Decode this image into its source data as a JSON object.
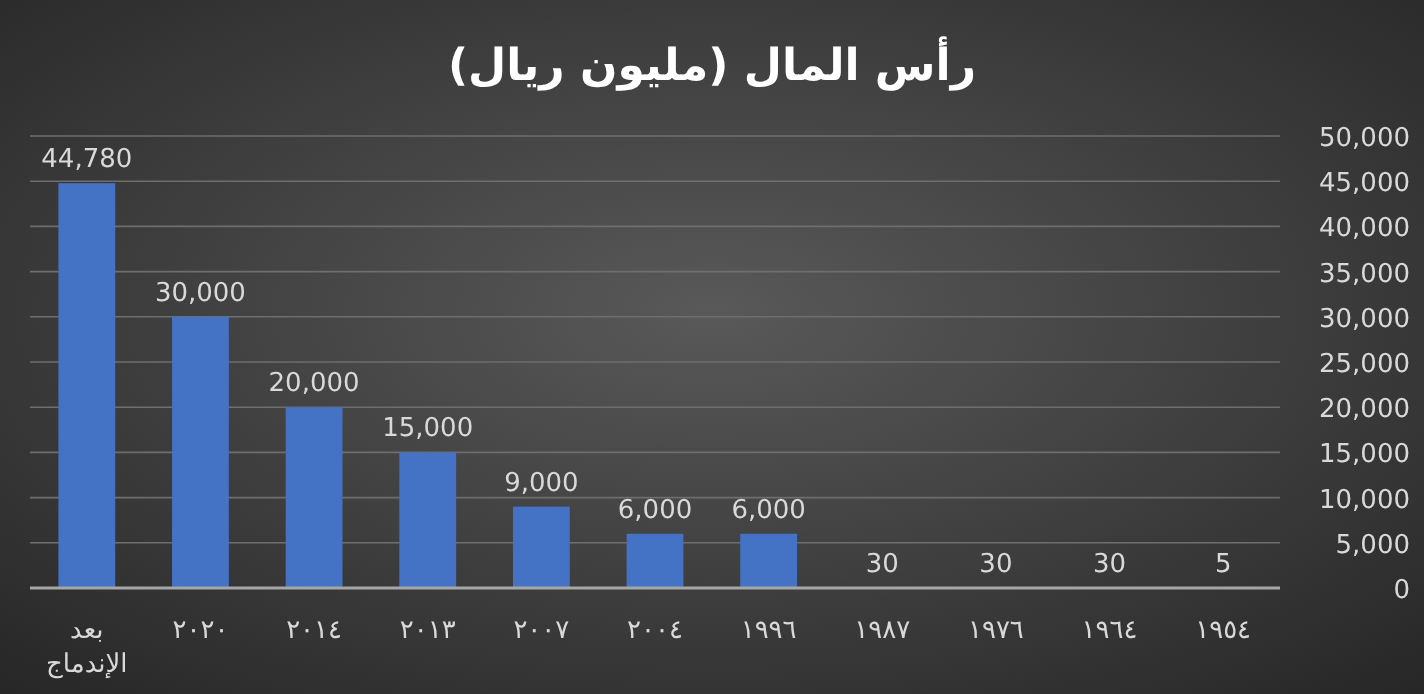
{
  "chart_data": {
    "type": "bar",
    "title": "رأس المال (مليون ريال)",
    "categories": [
      "بعد الإندماج",
      "٢٠٢٠",
      "٢٠١٤",
      "٢٠١٣",
      "٢٠٠٧",
      "٢٠٠٤",
      "١٩٩٦",
      "١٩٨٧",
      "١٩٧٦",
      "١٩٦٤",
      "١٩٥٤"
    ],
    "values": [
      44780,
      30000,
      20000,
      15000,
      9000,
      6000,
      6000,
      30,
      30,
      30,
      5
    ],
    "value_labels": [
      "44,780",
      "30,000",
      "20,000",
      "15,000",
      "9,000",
      "6,000",
      "6,000",
      "30",
      "30",
      "30",
      "5"
    ],
    "color": "#4472c4",
    "ylim": [
      0,
      50000
    ],
    "yticks": [
      {
        "value": 0,
        "label": "0"
      },
      {
        "value": 5000,
        "label": "5,000"
      },
      {
        "value": 10000,
        "label": "10,000"
      },
      {
        "value": 15000,
        "label": "15,000"
      },
      {
        "value": 20000,
        "label": "20,000"
      },
      {
        "value": 25000,
        "label": "25,000"
      },
      {
        "value": 30000,
        "label": "30,000"
      },
      {
        "value": 35000,
        "label": "35,000"
      },
      {
        "value": 40000,
        "label": "40,000"
      },
      {
        "value": 45000,
        "label": "45,000"
      },
      {
        "value": 50000,
        "label": "50,000"
      }
    ],
    "grid": "y"
  }
}
